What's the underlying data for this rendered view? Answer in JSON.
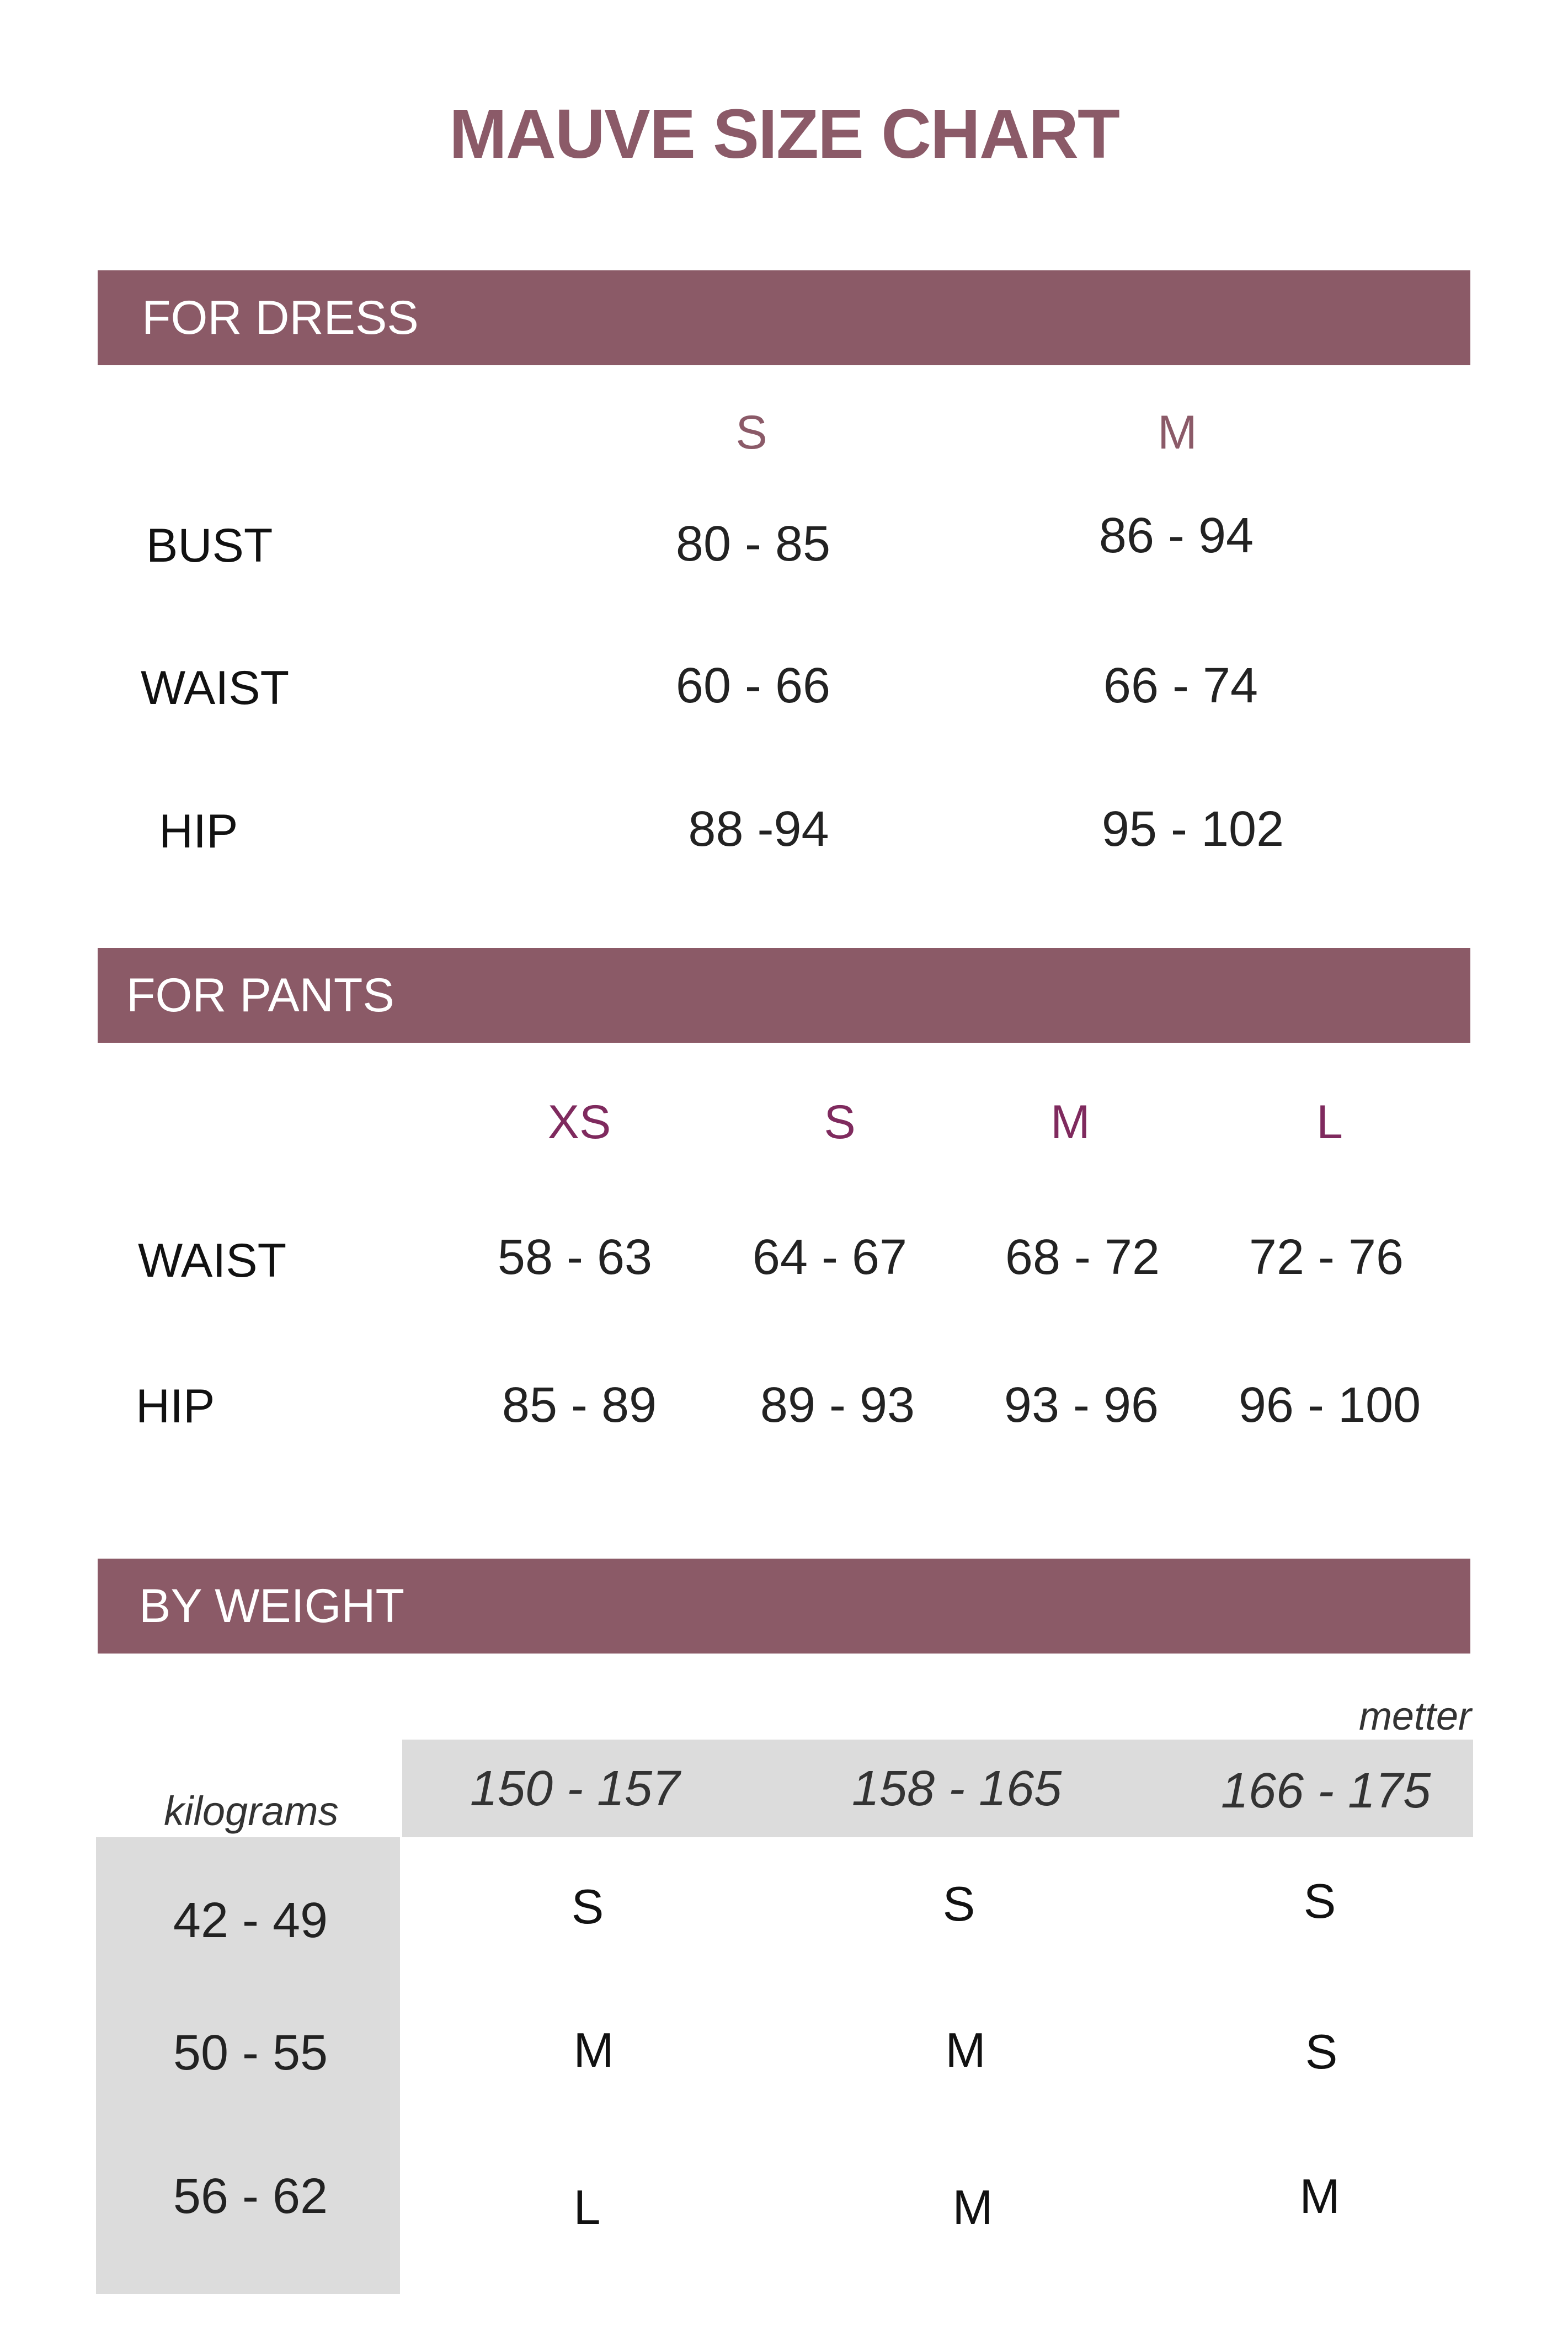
{
  "title": "MAUVE SIZE CHART",
  "colors": {
    "accent": "#8b5a67",
    "dress_size_header": "#8b5a68",
    "pants_size_header": "#7f2a5e",
    "grey_cell": "#dcdcdc"
  },
  "dress": {
    "header": "FOR DRESS",
    "sizes": [
      "S",
      "M"
    ],
    "rows": [
      {
        "label": "BUST",
        "values": [
          "80 - 85",
          "86 - 94"
        ]
      },
      {
        "label": "WAIST",
        "values": [
          "60 - 66",
          "66 - 74"
        ]
      },
      {
        "label": "HIP",
        "values": [
          "88 -94",
          "95 - 102"
        ]
      }
    ]
  },
  "pants": {
    "header": "FOR PANTS",
    "sizes": [
      "XS",
      "S",
      "M",
      "L"
    ],
    "rows": [
      {
        "label": "WAIST",
        "values": [
          "58 - 63",
          "64 - 67",
          "68 - 72",
          "72 - 76"
        ]
      },
      {
        "label": "HIP",
        "values": [
          "85 - 89",
          "89 - 93",
          "93 - 96",
          "96 - 100"
        ]
      }
    ]
  },
  "weight": {
    "header": "BY WEIGHT",
    "height_unit": "metter",
    "weight_unit": "kilograms",
    "heights": [
      "150  - 157",
      "158 - 165",
      "166 - 175"
    ],
    "rows": [
      {
        "weight": "42 -  49",
        "sizes": [
          "S",
          "S",
          "S"
        ]
      },
      {
        "weight": "50 - 55",
        "sizes": [
          "M",
          "M",
          "S"
        ]
      },
      {
        "weight": "56 - 62",
        "sizes": [
          "L",
          "M",
          "M"
        ]
      }
    ]
  }
}
